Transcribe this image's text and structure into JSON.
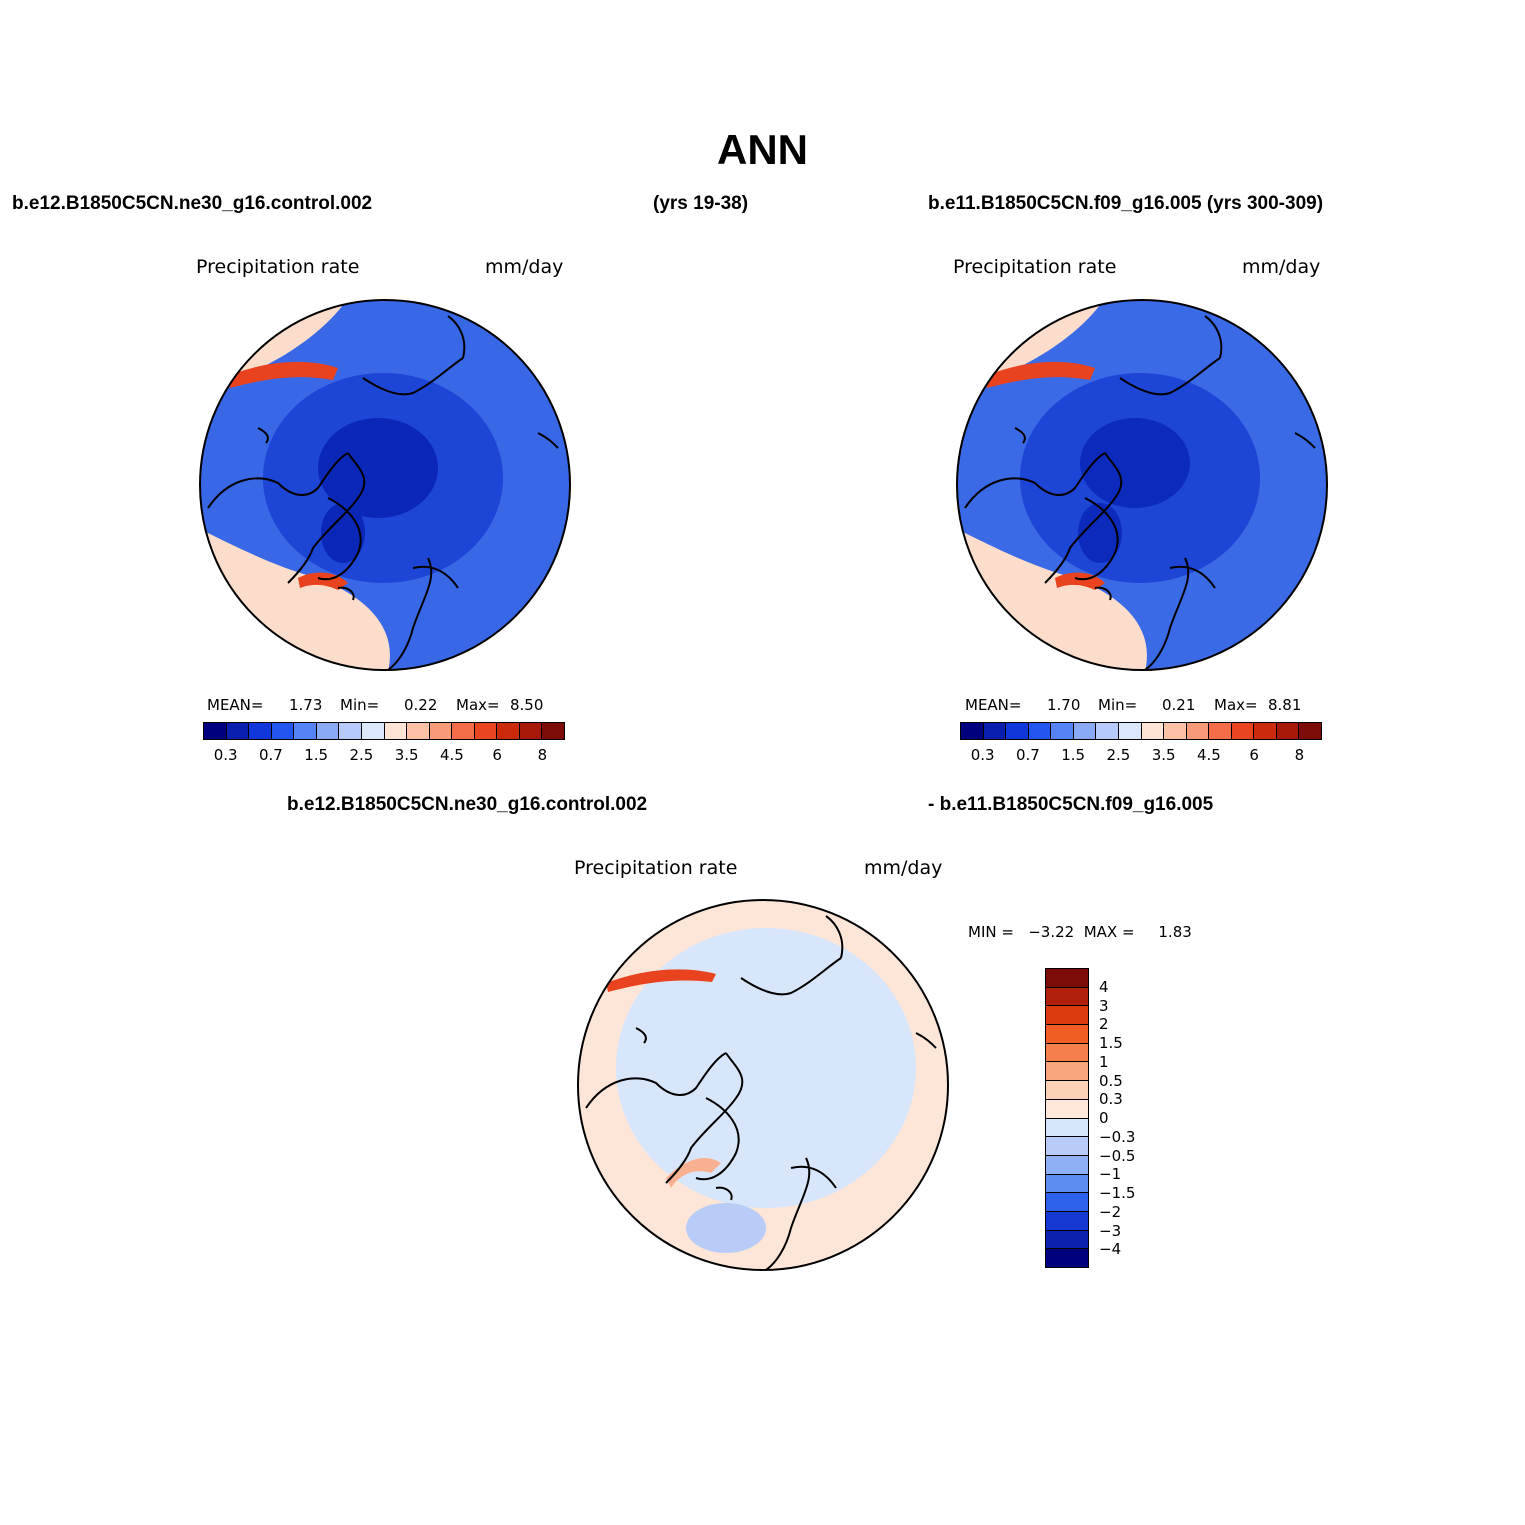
{
  "figure": {
    "title": "ANN"
  },
  "left_panel": {
    "case_name": "b.e12.B1850C5CN.ne30_g16.control.002",
    "years": "(yrs 19-38)",
    "variable": "Precipitation  rate",
    "units": "mm/day",
    "stats": {
      "mean_label": "MEAN=",
      "mean": "1.73",
      "min_label": "Min=",
      "min": "0.22",
      "max_label": "Max=",
      "max": "8.50"
    }
  },
  "right_panel": {
    "case_title": "b.e11.B1850C5CN.f09_g16.005 (yrs 300-309)",
    "variable": "Precipitation  rate",
    "units": "mm/day",
    "stats": {
      "mean_label": "MEAN=",
      "mean": "1.70",
      "min_label": "Min=",
      "min": "0.21",
      "max_label": "Max=",
      "max": "8.81"
    }
  },
  "diff_panel": {
    "case_a": "b.e12.B1850C5CN.ne30_g16.control.002",
    "case_b": "- b.e11.B1850C5CN.f09_g16.005",
    "variable": "Precipitation  rate",
    "units": "mm/day",
    "minmax": "MIN =   −3.22  MAX =     1.83"
  },
  "colorbar_abs": {
    "colors": [
      "#00007f",
      "#0a1fae",
      "#0f37d9",
      "#2356ee",
      "#5583f3",
      "#8aa9f6",
      "#b6cbf9",
      "#dbe8fc",
      "#fde4d4",
      "#fcc2a6",
      "#f89b78",
      "#f36d48",
      "#e84520",
      "#cc2a0c",
      "#a5180a",
      "#7b0c08"
    ],
    "ticks": [
      "0.3",
      "0.7",
      "1.5",
      "2.5",
      "3.5",
      "4.5",
      "6",
      "8"
    ]
  },
  "colorbar_diff": {
    "colors_top_to_bottom": [
      "#7b0c08",
      "#b0200a",
      "#dc3a0f",
      "#f25c25",
      "#f6804d",
      "#f9a67e",
      "#fcd1b8",
      "#fde8da",
      "#d7e6fb",
      "#b8ccf7",
      "#8fb0f4",
      "#5e8cf0",
      "#2e62eb",
      "#1639d3",
      "#0a22ad",
      "#00007f"
    ],
    "ticks_top_to_bottom": [
      "4",
      "3",
      "2",
      "1.5",
      "1",
      "0.5",
      "0.3",
      "0",
      "−0.3",
      "−0.5",
      "−1",
      "−1.5",
      "−2",
      "−3",
      "−4"
    ]
  },
  "maps": {
    "left": {
      "ocean": "#3868e6",
      "inner": "#1d45d6",
      "core": "#0a27b8",
      "pac": "#fcdccb",
      "storm": "#e8431e"
    },
    "right": {
      "ocean": "#3a6ae6",
      "inner": "#1d45d6",
      "core": "#0c2bbd",
      "pac": "#fcdccb",
      "storm": "#e8431e"
    },
    "diff": {
      "base": "#fde6d8",
      "cool": "#d7e6fb",
      "coolmid": "#b8ccf7",
      "warm": "#f9b090",
      "hot": "#e8431e"
    }
  }
}
